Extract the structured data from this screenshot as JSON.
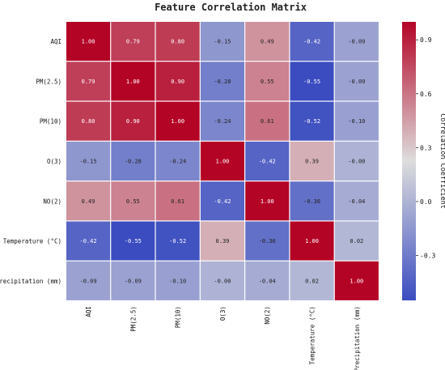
{
  "chart_data": {
    "type": "heatmap",
    "title": "Feature Correlation Matrix",
    "rows": [
      "AQI",
      "PM(2.5)",
      "PM(10)",
      "O(3)",
      "NO(2)",
      "Temperature (°C)",
      "Precipitation (mm)"
    ],
    "columns": [
      "AQI",
      "PM(2.5)",
      "PM(10)",
      "O(3)",
      "NO(2)",
      "Temperature (°C)",
      "Precipitation (mm)"
    ],
    "values": [
      [
        1.0,
        0.79,
        0.8,
        -0.15,
        0.49,
        -0.42,
        -0.09
      ],
      [
        0.79,
        1.0,
        0.9,
        -0.28,
        0.55,
        -0.55,
        -0.09
      ],
      [
        0.8,
        0.9,
        1.0,
        -0.24,
        0.61,
        -0.52,
        -0.1
      ],
      [
        -0.15,
        -0.28,
        -0.24,
        1.0,
        -0.42,
        0.39,
        -0.0
      ],
      [
        0.49,
        0.55,
        0.61,
        -0.42,
        1.0,
        -0.36,
        -0.04
      ],
      [
        -0.42,
        -0.55,
        -0.52,
        0.39,
        -0.36,
        1.0,
        0.02
      ],
      [
        -0.09,
        -0.09,
        -0.1,
        -0.0,
        -0.04,
        0.02,
        1.0
      ]
    ],
    "value_labels": [
      [
        "1.00",
        "0.79",
        "0.80",
        "-0.15",
        "0.49",
        "-0.42",
        "-0.09"
      ],
      [
        "0.79",
        "1.00",
        "0.90",
        "-0.28",
        "0.55",
        "-0.55",
        "-0.09"
      ],
      [
        "0.80",
        "0.90",
        "1.00",
        "-0.24",
        "0.61",
        "-0.52",
        "-0.10"
      ],
      [
        "-0.15",
        "-0.28",
        "-0.24",
        "1.00",
        "-0.42",
        "0.39",
        "-0.00"
      ],
      [
        "0.49",
        "0.55",
        "0.61",
        "-0.42",
        "1.00",
        "-0.36",
        "-0.04"
      ],
      [
        "-0.42",
        "-0.55",
        "-0.52",
        "0.39",
        "-0.36",
        "1.00",
        "0.02"
      ],
      [
        "-0.09",
        "-0.09",
        "-0.10",
        "-0.00",
        "-0.04",
        "0.02",
        "1.00"
      ]
    ],
    "colormap": "coolwarm",
    "vmin": -0.55,
    "vmax": 1.0,
    "colorbar": {
      "label": "Correlation Coefficient",
      "ticks": [
        -0.3,
        0.0,
        0.3,
        0.6,
        0.9
      ],
      "tick_labels": [
        "-0.3",
        "0.0",
        "0.3",
        "0.6",
        "0.9"
      ]
    },
    "colors": {
      "low": "#3b4cc0",
      "mid": "#dddddd",
      "high": "#b40426"
    }
  }
}
